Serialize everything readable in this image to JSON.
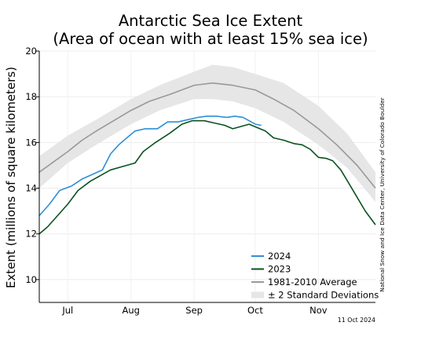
{
  "chart_data": {
    "type": "line",
    "title": "Antarctic Sea Ice Extent",
    "subtitle": "(Area of ocean with at least 15% sea ice)",
    "ylabel": "Extent (millions of square kilometers)",
    "xlabel": "",
    "ylim": [
      9,
      20
    ],
    "yticks": [
      10,
      12,
      14,
      16,
      18,
      20
    ],
    "xlim": [
      "2024-06-17",
      "2024-11-29"
    ],
    "xtick_labels": [
      {
        "label": "Jul",
        "date": "2024-07-01"
      },
      {
        "label": "Aug",
        "date": "2024-08-01"
      },
      {
        "label": "Sep",
        "date": "2024-09-01"
      },
      {
        "label": "Oct",
        "date": "2024-10-01"
      },
      {
        "label": "Nov",
        "date": "2024-11-01"
      }
    ],
    "grid": true,
    "legend_position": "bottom-right",
    "credit": "National Snow and Ice Data Center, University of Colorado Boulder",
    "date_stamp": "11 Oct 2024",
    "band": {
      "name": "± 2 Standard Deviations",
      "color": "#e6e6e6",
      "upper": [
        [
          "2024-06-17",
          15.4
        ],
        [
          "2024-07-01",
          16.3
        ],
        [
          "2024-07-15",
          17.0
        ],
        [
          "2024-08-01",
          17.9
        ],
        [
          "2024-08-15",
          18.5
        ],
        [
          "2024-09-01",
          19.1
        ],
        [
          "2024-09-10",
          19.4
        ],
        [
          "2024-09-20",
          19.3
        ],
        [
          "2024-10-01",
          19.0
        ],
        [
          "2024-10-15",
          18.6
        ],
        [
          "2024-11-01",
          17.6
        ],
        [
          "2024-11-15",
          16.4
        ],
        [
          "2024-11-29",
          14.7
        ]
      ],
      "lower": [
        [
          "2024-06-17",
          14.0
        ],
        [
          "2024-07-01",
          15.1
        ],
        [
          "2024-07-15",
          15.9
        ],
        [
          "2024-08-01",
          16.8
        ],
        [
          "2024-08-15",
          17.4
        ],
        [
          "2024-09-01",
          17.9
        ],
        [
          "2024-09-10",
          17.9
        ],
        [
          "2024-09-20",
          17.8
        ],
        [
          "2024-10-01",
          17.5
        ],
        [
          "2024-10-15",
          16.9
        ],
        [
          "2024-11-01",
          15.9
        ],
        [
          "2024-11-15",
          14.9
        ],
        [
          "2024-11-29",
          13.4
        ]
      ]
    },
    "series": [
      {
        "name": "1981-2010 Average",
        "color": "#999999",
        "points": [
          [
            "2024-06-17",
            14.7
          ],
          [
            "2024-07-01",
            15.6
          ],
          [
            "2024-07-08",
            16.1
          ],
          [
            "2024-07-15",
            16.5
          ],
          [
            "2024-08-01",
            17.4
          ],
          [
            "2024-08-10",
            17.8
          ],
          [
            "2024-08-20",
            18.1
          ],
          [
            "2024-09-01",
            18.5
          ],
          [
            "2024-09-10",
            18.6
          ],
          [
            "2024-09-20",
            18.5
          ],
          [
            "2024-10-01",
            18.3
          ],
          [
            "2024-10-10",
            17.9
          ],
          [
            "2024-10-20",
            17.4
          ],
          [
            "2024-11-01",
            16.6
          ],
          [
            "2024-11-10",
            15.9
          ],
          [
            "2024-11-20",
            15.0
          ],
          [
            "2024-11-29",
            14.0
          ]
        ]
      },
      {
        "name": "2024",
        "color": "#2f8fd6",
        "points": [
          [
            "2024-06-17",
            12.8
          ],
          [
            "2024-06-22",
            13.3
          ],
          [
            "2024-06-27",
            13.9
          ],
          [
            "2024-07-03",
            14.1
          ],
          [
            "2024-07-08",
            14.4
          ],
          [
            "2024-07-13",
            14.6
          ],
          [
            "2024-07-18",
            14.8
          ],
          [
            "2024-07-22",
            15.5
          ],
          [
            "2024-07-26",
            15.9
          ],
          [
            "2024-07-30",
            16.2
          ],
          [
            "2024-08-03",
            16.5
          ],
          [
            "2024-08-08",
            16.6
          ],
          [
            "2024-08-14",
            16.6
          ],
          [
            "2024-08-19",
            16.9
          ],
          [
            "2024-08-24",
            16.9
          ],
          [
            "2024-08-29",
            17.0
          ],
          [
            "2024-09-03",
            17.1
          ],
          [
            "2024-09-07",
            17.15
          ],
          [
            "2024-09-12",
            17.15
          ],
          [
            "2024-09-17",
            17.1
          ],
          [
            "2024-09-21",
            17.15
          ],
          [
            "2024-09-25",
            17.1
          ],
          [
            "2024-09-28",
            16.95
          ],
          [
            "2024-10-01",
            16.8
          ],
          [
            "2024-10-04",
            16.75
          ]
        ]
      },
      {
        "name": "2023",
        "color": "#0b5220",
        "points": [
          [
            "2024-06-17",
            12.0
          ],
          [
            "2024-06-21",
            12.3
          ],
          [
            "2024-06-26",
            12.8
          ],
          [
            "2024-07-01",
            13.3
          ],
          [
            "2024-07-06",
            13.9
          ],
          [
            "2024-07-12",
            14.3
          ],
          [
            "2024-07-18",
            14.6
          ],
          [
            "2024-07-22",
            14.8
          ],
          [
            "2024-07-28",
            14.95
          ],
          [
            "2024-08-03",
            15.1
          ],
          [
            "2024-08-07",
            15.6
          ],
          [
            "2024-08-13",
            16.0
          ],
          [
            "2024-08-20",
            16.4
          ],
          [
            "2024-08-26",
            16.8
          ],
          [
            "2024-08-31",
            16.95
          ],
          [
            "2024-09-06",
            16.95
          ],
          [
            "2024-09-11",
            16.85
          ],
          [
            "2024-09-16",
            16.75
          ],
          [
            "2024-09-20",
            16.6
          ],
          [
            "2024-09-24",
            16.7
          ],
          [
            "2024-09-28",
            16.8
          ],
          [
            "2024-10-02",
            16.65
          ],
          [
            "2024-10-06",
            16.5
          ],
          [
            "2024-10-10",
            16.2
          ],
          [
            "2024-10-15",
            16.1
          ],
          [
            "2024-10-20",
            15.95
          ],
          [
            "2024-10-24",
            15.9
          ],
          [
            "2024-10-28",
            15.7
          ],
          [
            "2024-11-01",
            15.35
          ],
          [
            "2024-11-05",
            15.3
          ],
          [
            "2024-11-08",
            15.2
          ],
          [
            "2024-11-12",
            14.8
          ],
          [
            "2024-11-16",
            14.2
          ],
          [
            "2024-11-20",
            13.6
          ],
          [
            "2024-11-24",
            13.0
          ],
          [
            "2024-11-29",
            12.4
          ]
        ]
      }
    ],
    "legend": [
      {
        "label": "2024",
        "kind": "line",
        "color": "#2f8fd6"
      },
      {
        "label": "2023",
        "kind": "line",
        "color": "#0b5220"
      },
      {
        "label": "1981-2010 Average",
        "kind": "line",
        "color": "#999999"
      },
      {
        "label": "± 2 Standard Deviations",
        "kind": "band",
        "color": "#e6e6e6"
      }
    ]
  }
}
